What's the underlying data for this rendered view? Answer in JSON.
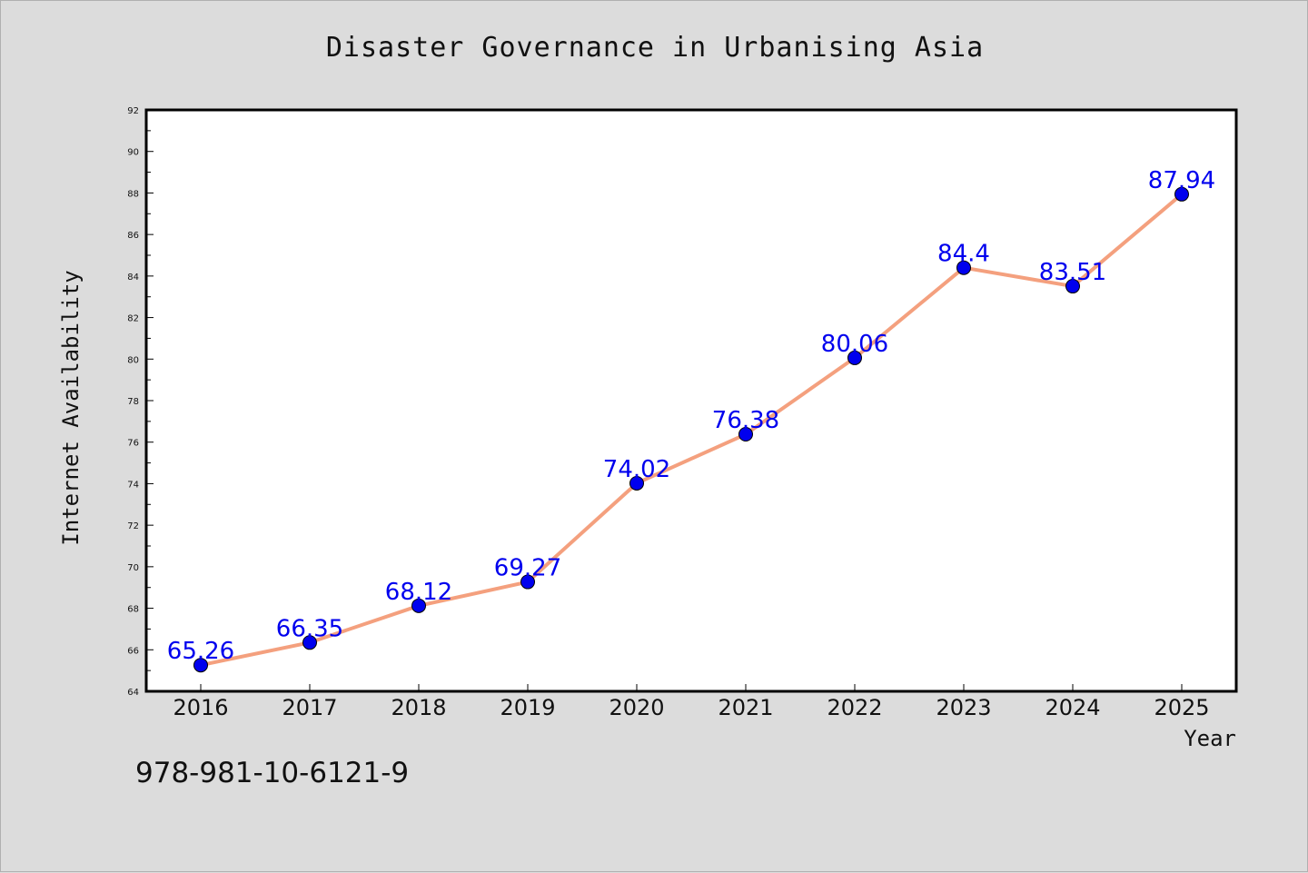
{
  "chart_data": {
    "type": "line",
    "title": "Disaster Governance in Urbanising Asia",
    "xlabel": "Year",
    "ylabel": "Internet Availability",
    "categories": [
      "2016",
      "2017",
      "2018",
      "2019",
      "2020",
      "2021",
      "2022",
      "2023",
      "2024",
      "2025"
    ],
    "series": [
      {
        "values": [
          65.26,
          66.35,
          68.12,
          69.27,
          74.02,
          76.38,
          80.06,
          84.4,
          83.51,
          87.94
        ],
        "labels": [
          "65.26",
          "66.35",
          "68.12",
          "69.27",
          "74.02",
          "76.38",
          "80.06",
          "84.4",
          "83.51",
          "87.94"
        ],
        "line_color": "#f4a07e",
        "marker_color": "#0000ee"
      }
    ],
    "ylim": [
      64,
      92
    ],
    "yticks": [
      "64",
      "66",
      "68",
      "70",
      "72",
      "74",
      "76",
      "78",
      "80",
      "82",
      "84",
      "86",
      "88",
      "90",
      "92"
    ],
    "grid": false,
    "legend": "none"
  },
  "footer": {
    "text": "978-981-10-6121-9"
  },
  "colors": {
    "background": "#dcdcdc",
    "plot_background": "#ffffff"
  }
}
